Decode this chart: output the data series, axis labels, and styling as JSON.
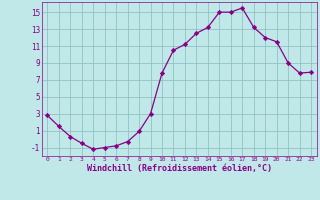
{
  "x": [
    0,
    1,
    2,
    3,
    4,
    5,
    6,
    7,
    8,
    9,
    10,
    11,
    12,
    13,
    14,
    15,
    16,
    17,
    18,
    19,
    20,
    21,
    22,
    23
  ],
  "y": [
    2.8,
    1.5,
    0.3,
    -0.5,
    -1.2,
    -1.0,
    -0.8,
    -0.3,
    0.9,
    3.0,
    7.8,
    10.5,
    11.2,
    12.5,
    13.2,
    15.0,
    15.0,
    15.5,
    13.2,
    12.0,
    11.5,
    9.0,
    7.8,
    7.9
  ],
  "line_color": "#880088",
  "marker": "D",
  "marker_size": 2.2,
  "bg_color": "#c0e8e8",
  "grid_color": "#88bbbb",
  "xlabel": "Windchill (Refroidissement éolien,°C)",
  "xlabel_color": "#880088",
  "ylabel_ticks": [
    -1,
    1,
    3,
    5,
    7,
    9,
    11,
    13,
    15
  ],
  "xtick_labels": [
    "0",
    "1",
    "2",
    "3",
    "4",
    "5",
    "6",
    "7",
    "8",
    "9",
    "10",
    "11",
    "12",
    "13",
    "14",
    "15",
    "16",
    "17",
    "18",
    "19",
    "20",
    "21",
    "22",
    "23"
  ],
  "ylim": [
    -2.0,
    16.2
  ],
  "xlim": [
    -0.5,
    23.5
  ]
}
